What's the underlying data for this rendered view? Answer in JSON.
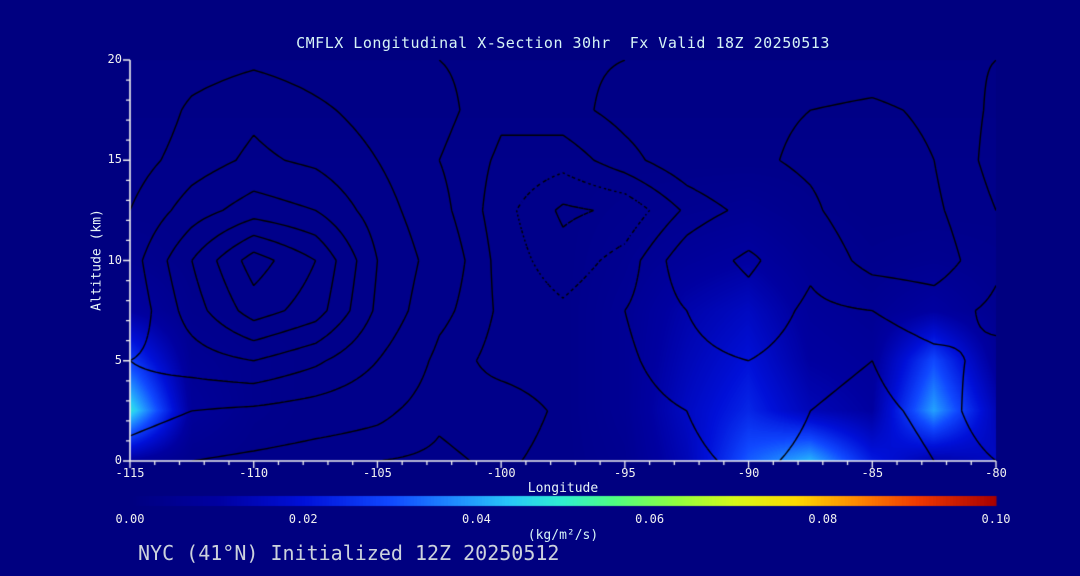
{
  "footer": "NYC (41°N) Initialized 12Z 20250512",
  "colors": {
    "background": "#000080",
    "axis": "#f0f0f0",
    "title_text": "#d6f4f6",
    "label_text": "#e8f6f8",
    "tick_text": "#f0f0f0",
    "footer_text": "#ccd2dc",
    "contour_line": "#000000"
  },
  "chart_data": {
    "type": "heatmap",
    "title": "CMFLX Longitudinal X-Section 30hr  Fx Valid 18Z 20250513",
    "xlabel": "Longitude",
    "ylabel": "Altitude (km)",
    "xlim": [
      -115,
      -80
    ],
    "ylim": [
      0,
      20
    ],
    "x_ticks": [
      -115,
      -110,
      -105,
      -100,
      -95,
      -90,
      -85,
      -80
    ],
    "x_tick_labels": [
      "-115",
      "-110",
      "-105",
      "-100",
      "-95",
      "-90",
      "-85",
      "-80"
    ],
    "y_ticks": [
      0,
      5,
      10,
      15,
      20
    ],
    "y_tick_labels": [
      "0",
      "5",
      "10",
      "15",
      "20"
    ],
    "x_minor_step": 1,
    "y_minor_step": 1,
    "x": [
      -115,
      -112.5,
      -110,
      -107.5,
      -105,
      -102.5,
      -100,
      -97.5,
      -95,
      -92.5,
      -90,
      -87.5,
      -85,
      -82.5,
      -80
    ],
    "y": [
      0,
      2.5,
      5,
      7.5,
      10,
      12.5,
      15,
      17.5,
      20
    ],
    "fill_units": "(kg/m²/s)",
    "fill_range": [
      0,
      0.1
    ],
    "fill_values": [
      [
        0.01,
        0.004,
        0.003,
        0.003,
        0.003,
        0.003,
        0.003,
        0.003,
        0.005,
        0.014,
        0.032,
        0.042,
        0.022,
        0.012,
        0.016
      ],
      [
        0.048,
        0.008,
        0.004,
        0.003,
        0.003,
        0.003,
        0.003,
        0.003,
        0.006,
        0.016,
        0.024,
        0.014,
        0.01,
        0.04,
        0.014
      ],
      [
        0.028,
        0.006,
        0.004,
        0.003,
        0.003,
        0.003,
        0.003,
        0.003,
        0.006,
        0.014,
        0.02,
        0.01,
        0.008,
        0.03,
        0.008
      ],
      [
        0.01,
        0.004,
        0.003,
        0.003,
        0.003,
        0.003,
        0.003,
        0.003,
        0.006,
        0.012,
        0.016,
        0.008,
        0.006,
        0.01,
        0.005
      ],
      [
        0.005,
        0.003,
        0.003,
        0.003,
        0.003,
        0.003,
        0.003,
        0.003,
        0.005,
        0.008,
        0.01,
        0.006,
        0.004,
        0.005,
        0.004
      ],
      [
        0.003,
        0.003,
        0.003,
        0.003,
        0.003,
        0.003,
        0.003,
        0.003,
        0.004,
        0.005,
        0.006,
        0.004,
        0.003,
        0.003,
        0.003
      ],
      [
        0.003,
        0.003,
        0.003,
        0.003,
        0.003,
        0.003,
        0.003,
        0.003,
        0.003,
        0.003,
        0.003,
        0.003,
        0.003,
        0.003,
        0.003
      ],
      [
        0.002,
        0.002,
        0.002,
        0.002,
        0.002,
        0.002,
        0.002,
        0.002,
        0.002,
        0.002,
        0.002,
        0.002,
        0.002,
        0.002,
        0.002
      ],
      [
        0.002,
        0.002,
        0.002,
        0.002,
        0.002,
        0.002,
        0.002,
        0.002,
        0.002,
        0.002,
        0.002,
        0.002,
        0.002,
        0.002,
        0.002
      ]
    ],
    "contour_levels": [
      -0.5,
      0,
      0.5,
      1,
      2,
      3,
      4,
      5,
      6,
      7
    ],
    "contour_values": [
      [
        1.5,
        1.0,
        0.8,
        0.6,
        0.5,
        0.4,
        0.6,
        0.3,
        0.2,
        0.4,
        0.6,
        0.4,
        0.3,
        0.5,
        1.0
      ],
      [
        2.5,
        2.0,
        1.8,
        1.5,
        1.2,
        0.6,
        0.8,
        0.4,
        0.3,
        0.5,
        0.8,
        0.5,
        0.4,
        0.6,
        1.5
      ],
      [
        3.0,
        3.5,
        4.0,
        3.2,
        2.0,
        0.8,
        0.3,
        0.2,
        0.4,
        0.8,
        1.0,
        0.6,
        0.5,
        0.8,
        1.2
      ],
      [
        2.2,
        4.5,
        6.5,
        5.5,
        2.8,
        1.2,
        0.4,
        0.1,
        0.5,
        1.0,
        1.6,
        0.8,
        1.0,
        1.4,
        0.8
      ],
      [
        2.5,
        5.0,
        7.5,
        6.0,
        3.0,
        1.5,
        0.3,
        -0.3,
        0.2,
        1.4,
        2.2,
        1.2,
        2.4,
        2.6,
        1.2
      ],
      [
        2.0,
        3.5,
        4.5,
        4.0,
        2.5,
        1.2,
        0.2,
        -0.6,
        -0.4,
        0.6,
        1.2,
        1.8,
        2.8,
        2.2,
        1.0
      ],
      [
        1.5,
        2.5,
        3.2,
        2.8,
        2.0,
        1.0,
        0.4,
        0.2,
        0.8,
        1.4,
        1.8,
        2.2,
        2.6,
        2.0,
        0.6
      ],
      [
        1.0,
        2.2,
        2.8,
        2.2,
        1.6,
        1.2,
        0.6,
        0.8,
        1.2,
        1.5,
        1.8,
        2.0,
        2.2,
        1.8,
        0.8
      ],
      [
        1.2,
        1.5,
        1.8,
        1.5,
        1.2,
        1.0,
        0.8,
        0.9,
        1.0,
        1.1,
        1.2,
        1.3,
        1.4,
        1.2,
        1.0
      ]
    ],
    "colorbar": {
      "min": 0,
      "max": 0.1,
      "tick_values": [
        0,
        0.02,
        0.04,
        0.06,
        0.08,
        0.1
      ],
      "tick_labels": [
        "0.00",
        "0.02",
        "0.04",
        "0.06",
        "0.08",
        "0.10"
      ],
      "label": "(kg/m²/s)",
      "stops": [
        [
          0.0,
          "#000080"
        ],
        [
          0.1,
          "#0000a0"
        ],
        [
          0.2,
          "#0010d8"
        ],
        [
          0.3,
          "#1048ff"
        ],
        [
          0.38,
          "#2090ff"
        ],
        [
          0.44,
          "#28c8f8"
        ],
        [
          0.5,
          "#30f0d0"
        ],
        [
          0.56,
          "#50ff80"
        ],
        [
          0.63,
          "#90ff40"
        ],
        [
          0.7,
          "#d8f818"
        ],
        [
          0.77,
          "#ffd800"
        ],
        [
          0.84,
          "#ff8800"
        ],
        [
          0.91,
          "#f03800"
        ],
        [
          1.0,
          "#a80000"
        ]
      ]
    }
  }
}
